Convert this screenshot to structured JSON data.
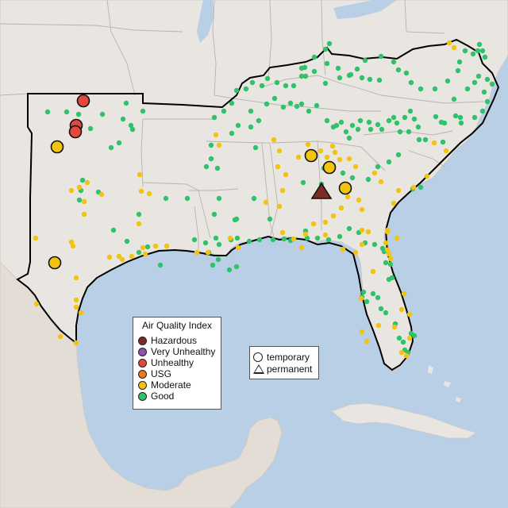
{
  "legend": {
    "title": "Air Quality Index",
    "categories": [
      {
        "label": "Hazardous",
        "color": "#7e2b26"
      },
      {
        "label": "Very Unhealthy",
        "color": "#8d52b0"
      },
      {
        "label": "Unhealthy",
        "color": "#e2483b"
      },
      {
        "label": "USG",
        "color": "#e67b1f"
      },
      {
        "label": "Moderate",
        "color": "#f2c30f"
      },
      {
        "label": "Good",
        "color": "#2fc26b"
      }
    ]
  },
  "type_legend": {
    "temporary": "temporary",
    "permanent": "permanent"
  },
  "colors": {
    "water": "#b9cfe6",
    "land": "#e9e6e1",
    "outline": "#000000",
    "state_border": "#b7b3ae"
  }
}
